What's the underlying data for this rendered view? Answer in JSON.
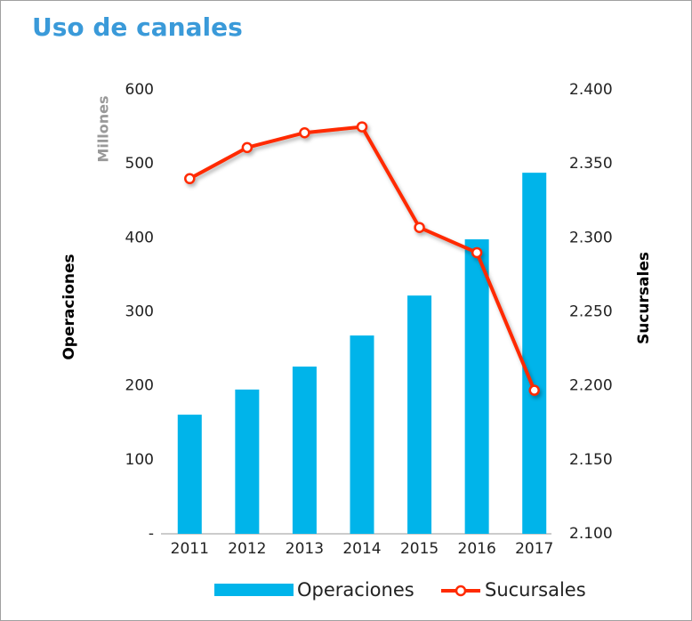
{
  "chart_data": {
    "type": "bar_line",
    "title": "Uso de canales",
    "unit_label": "Millones",
    "ylabel": "Operaciones",
    "y2label": "Sucursales",
    "categories": [
      "2011",
      "2012",
      "2013",
      "2014",
      "2015",
      "2016",
      "2017"
    ],
    "series": [
      {
        "name": "Operaciones",
        "type": "bar",
        "color": "#00b4ea",
        "values": [
          161,
          195,
          226,
          268,
          322,
          398,
          488
        ]
      },
      {
        "name": "Sucursales",
        "type": "line",
        "color": "#ff2a00",
        "axis": "y2",
        "values": [
          2340,
          2361,
          2371,
          2375,
          2307,
          2290,
          2197
        ]
      }
    ],
    "ylim": [
      0,
      600
    ],
    "yticks": [
      {
        "value": 0,
        "label": "-"
      },
      100,
      200,
      300,
      400,
      500,
      600
    ],
    "y2lim": [
      2100,
      2400
    ],
    "y2ticks": [
      {
        "value": 2100,
        "label": "2.100"
      },
      {
        "value": 2150,
        "label": "2.150"
      },
      {
        "value": 2200,
        "label": "2.200"
      },
      {
        "value": 2250,
        "label": "2.250"
      },
      {
        "value": 2300,
        "label": "2.300"
      },
      {
        "value": 2350,
        "label": "2.350"
      },
      {
        "value": 2400,
        "label": "2.400"
      }
    ],
    "legend": "bottom"
  }
}
